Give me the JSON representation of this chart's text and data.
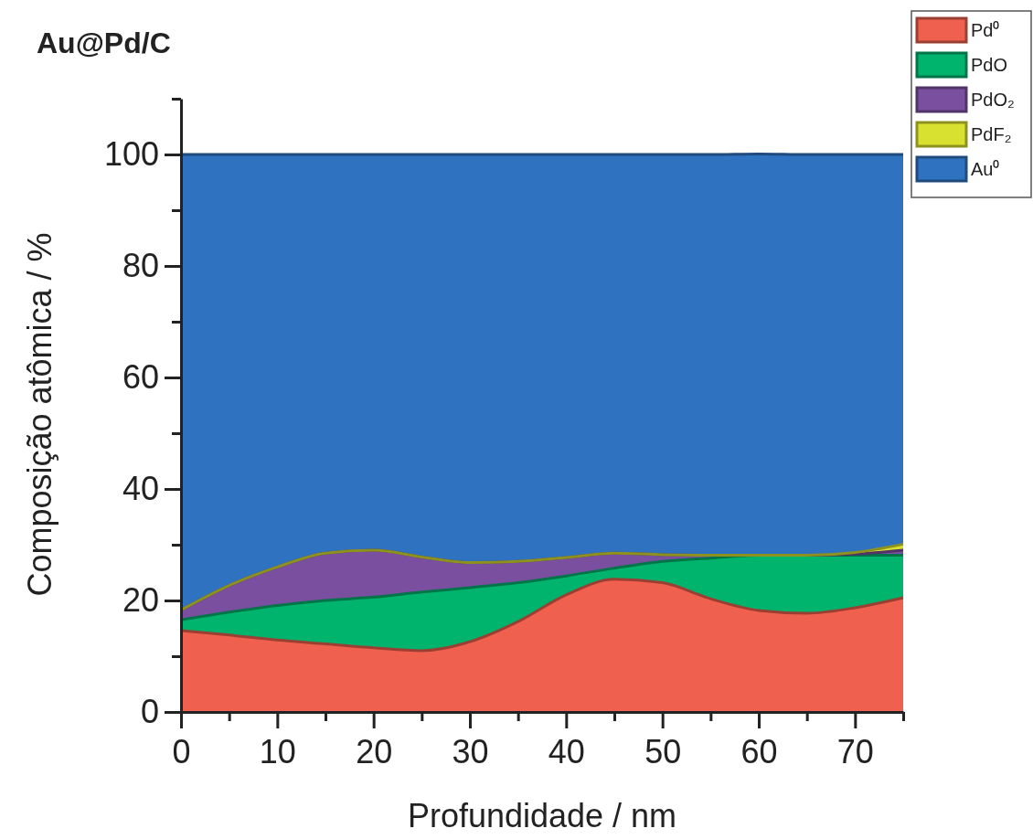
{
  "chart_data": {
    "type": "area",
    "stacked": true,
    "title": "Au@Pd/C",
    "xlabel": "Profundidade / nm",
    "ylabel": "Composição atômica / %",
    "x": [
      0,
      5,
      10,
      15,
      20,
      25,
      30,
      35,
      40,
      45,
      50,
      55,
      60,
      65,
      70,
      75
    ],
    "series": [
      {
        "name": "Pd⁰",
        "color": "#f0604f",
        "values": [
          14.6,
          13.8,
          12.9,
          12.2,
          11.5,
          11.0,
          12.6,
          16.2,
          21.0,
          23.8,
          23.2,
          20.3,
          18.2,
          17.7,
          18.7,
          20.5
        ]
      },
      {
        "name": "PdO",
        "color": "#00b46e",
        "values": [
          1.9,
          4.1,
          6.2,
          7.8,
          9.1,
          10.5,
          9.7,
          7.0,
          3.4,
          2.0,
          3.8,
          7.3,
          9.9,
          10.4,
          9.4,
          7.6
        ]
      },
      {
        "name": "PdO₂",
        "color": "#7a4fa0",
        "values": [
          1.8,
          4.8,
          6.9,
          8.5,
          8.4,
          6.3,
          4.5,
          3.8,
          3.3,
          2.7,
          1.2,
          0.5,
          0,
          0,
          0.2,
          0.9
        ]
      },
      {
        "name": "PdF₂",
        "color": "#d8e030",
        "values": [
          0,
          0,
          0,
          0,
          0,
          0,
          0,
          0,
          0,
          0,
          0,
          0,
          0,
          0,
          0.3,
          1.1
        ]
      },
      {
        "name": "Au⁰",
        "color": "#2f72c0",
        "values": [
          81.7,
          77.3,
          74.0,
          71.5,
          71.0,
          72.2,
          73.2,
          73.0,
          72.3,
          71.5,
          71.8,
          71.9,
          72.0,
          71.9,
          71.4,
          69.9
        ]
      }
    ],
    "xlim": [
      0,
      75
    ],
    "xticks": [
      0,
      {
        "value": 5,
        "label": null
      },
      10,
      {
        "value": 15,
        "label": null
      },
      20,
      {
        "value": 25,
        "label": null
      },
      30,
      {
        "value": 35,
        "label": null
      },
      40,
      {
        "value": 45,
        "label": null
      },
      50,
      {
        "value": 55,
        "label": null
      },
      60,
      {
        "value": 65,
        "label": null
      },
      70,
      {
        "value": 75,
        "label": null
      }
    ],
    "ylim": [
      0,
      110
    ],
    "yticks": [
      0,
      {
        "value": 10,
        "label": null
      },
      20,
      {
        "value": 30,
        "label": null
      },
      40,
      {
        "value": 50,
        "label": null
      },
      60,
      {
        "value": 70,
        "label": null
      },
      80,
      {
        "value": 90,
        "label": null
      },
      100,
      {
        "value": 110,
        "label": null
      }
    ],
    "grid": false,
    "legend": "top right"
  }
}
